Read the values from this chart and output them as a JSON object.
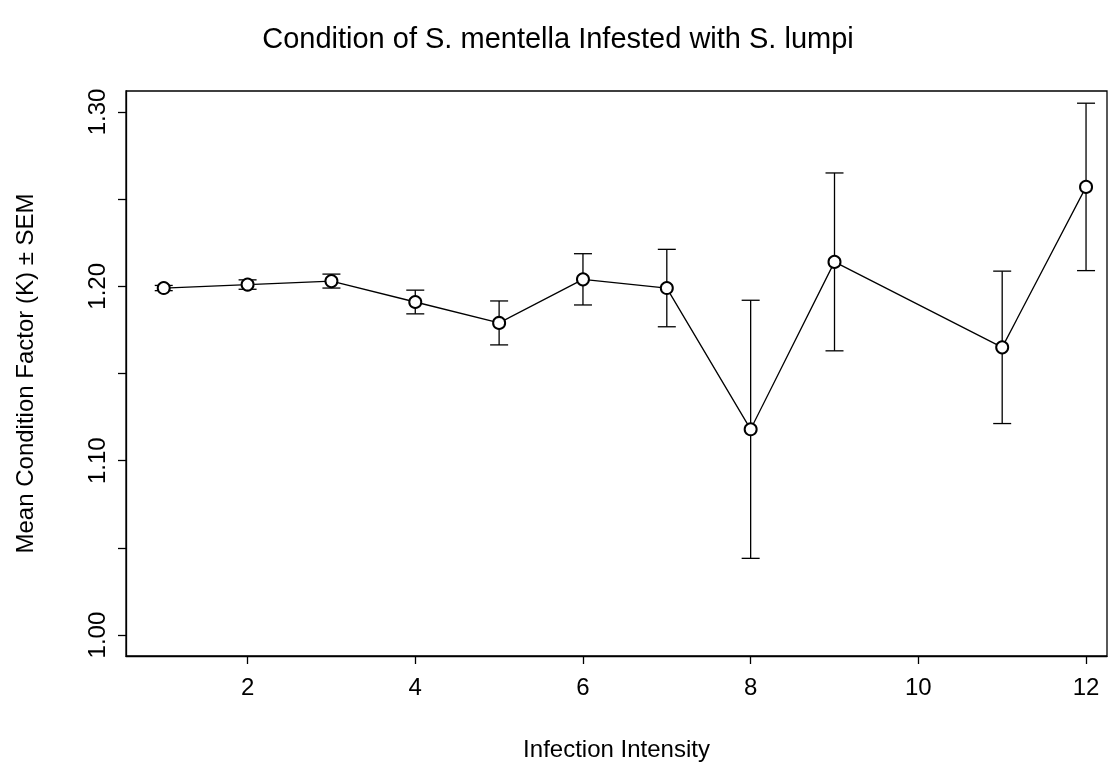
{
  "chart_data": {
    "type": "line",
    "title": "Condition of S. mentella Infested with S. lumpi",
    "xlabel": "Infection Intensity",
    "ylabel": "Mean Condition Factor (K) ± SEM",
    "x": [
      1,
      2,
      3,
      4,
      5,
      6,
      7,
      8,
      9,
      11,
      12
    ],
    "series": [
      {
        "color": "#000000",
        "values": [
          1.199,
          1.201,
          1.203,
          1.191,
          1.179,
          1.204,
          1.199,
          1.118,
          1.214,
          1.165,
          1.257
        ],
        "errors": [
          0.0015,
          0.0027,
          0.004,
          0.0068,
          0.0126,
          0.0147,
          0.0222,
          0.074,
          0.051,
          0.0437,
          0.048
        ]
      }
    ],
    "xlim": [
      0.55,
      12.25
    ],
    "xticks": [
      2,
      4,
      6,
      8,
      10,
      12
    ],
    "ylim": [
      0.988,
      1.312
    ],
    "yticks": [
      {
        "value": 1.0,
        "label": "1.00"
      },
      {
        "value": 1.05,
        "label": null
      },
      {
        "value": 1.1,
        "label": "1.10"
      },
      {
        "value": 1.15,
        "label": null
      },
      {
        "value": 1.2,
        "label": "1.20"
      },
      {
        "value": 1.25,
        "label": null
      },
      {
        "value": 1.3,
        "label": "1.30"
      }
    ],
    "marker": "circle",
    "line_style": "solid"
  }
}
